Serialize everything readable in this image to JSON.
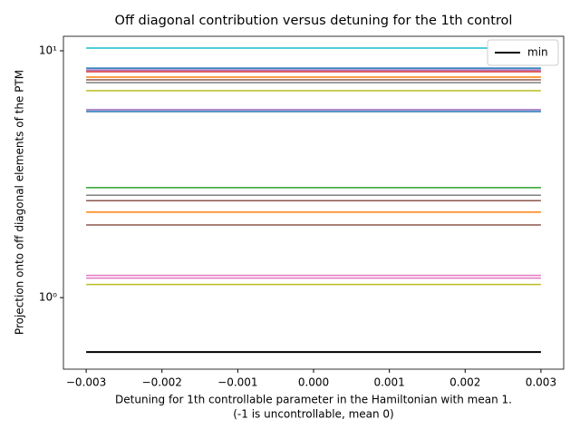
{
  "chart_data": {
    "type": "line",
    "title": "Off diagonal contribution versus detuning for the 1th control",
    "xlabel": [
      "Detuning for 1th controllable parameter in the Hamiltonian with mean 1.",
      "(-1 is uncontrollable, mean 0)"
    ],
    "ylabel": "Projection onto off diagonal elements of the PTM",
    "x": [
      -0.003,
      0.003
    ],
    "xlim": [
      -0.0033,
      0.0033
    ],
    "xticks": [
      {
        "value": -0.003,
        "label": "−0.003"
      },
      {
        "value": -0.002,
        "label": "−0.002"
      },
      {
        "value": -0.001,
        "label": "−0.001"
      },
      {
        "value": 0,
        "label": "0.000"
      },
      0.001,
      0.002,
      0.003
    ],
    "ylim": [
      0.513,
      11.45
    ],
    "yticks": [
      {
        "value": 1,
        "label": "10⁰"
      },
      {
        "value": 10,
        "label": "10¹"
      }
    ],
    "ylog": true,
    "legend": "upper right",
    "series": [
      {
        "color": "#17becf",
        "values": [
          10.26,
          10.26
        ]
      },
      {
        "color": "#1f77b4",
        "values": [
          8.51,
          8.51
        ]
      },
      {
        "color": "#9467bd",
        "values": [
          8.36,
          8.36
        ]
      },
      {
        "color": "#d62728",
        "values": [
          8.23,
          8.23
        ]
      },
      {
        "color": "#ff7f0e",
        "values": [
          7.82,
          7.82
        ]
      },
      {
        "color": "#8c564b",
        "values": [
          7.63,
          7.63
        ]
      },
      {
        "color": "#7f7f7f",
        "values": [
          7.43,
          7.43
        ]
      },
      {
        "color": "#bcbd22",
        "values": [
          6.89,
          6.89
        ]
      },
      {
        "color": "#9467bd",
        "values": [
          5.77,
          5.77
        ]
      },
      {
        "color": "#1f77b4",
        "values": [
          5.67,
          5.67
        ]
      },
      {
        "color": "#2ca02c",
        "values": [
          2.79,
          2.79
        ]
      },
      {
        "color": "#7f7f7f",
        "values": [
          2.6,
          2.6
        ]
      },
      {
        "color": "#8c564b",
        "values": [
          2.47,
          2.47
        ]
      },
      {
        "color": "#ff7f0e",
        "values": [
          2.22,
          2.22
        ]
      },
      {
        "color": "#8c564b",
        "values": [
          1.97,
          1.97
        ]
      },
      {
        "color": "#e377c2",
        "values": [
          1.23,
          1.23
        ]
      },
      {
        "color": "#e377c2",
        "values": [
          1.2,
          1.2
        ]
      },
      {
        "color": "#bcbd22",
        "values": [
          1.13,
          1.13
        ]
      },
      {
        "name": "min",
        "color": "#000000",
        "values": [
          0.602,
          0.602
        ]
      }
    ]
  }
}
